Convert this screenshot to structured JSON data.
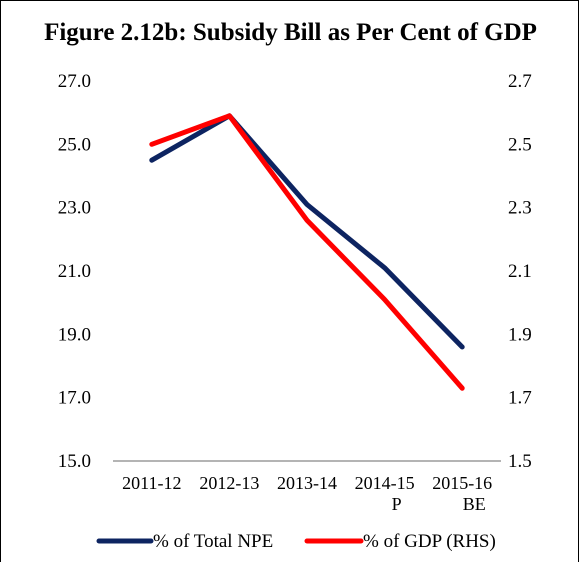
{
  "chart_data": {
    "type": "line",
    "title": "Figure 2.12b: Subsidy Bill as Per Cent of GDP",
    "categories": [
      [
        "2011-12"
      ],
      [
        "2012-13"
      ],
      [
        "2013-14"
      ],
      [
        "2014-15",
        "P"
      ],
      [
        "2015-16",
        "BE"
      ]
    ],
    "left_axis": {
      "ticks": [
        "27.0",
        "25.0",
        "23.0",
        "21.0",
        "19.0",
        "17.0",
        "15.0"
      ],
      "ylim": [
        15,
        27
      ]
    },
    "right_axis": {
      "ticks": [
        "2.7",
        "2.5",
        "2.3",
        "2.1",
        "1.9",
        "1.7",
        "1.5"
      ],
      "ylim": [
        1.5,
        2.7
      ]
    },
    "series": [
      {
        "name": "% of Total NPE",
        "axis": "left",
        "color": "#0d2461",
        "values": [
          24.5,
          25.9,
          23.1,
          21.1,
          18.6
        ]
      },
      {
        "name": "% of GDP (RHS)",
        "axis": "right",
        "color": "#ff0000",
        "values": [
          2.5,
          2.59,
          2.26,
          2.01,
          1.73
        ]
      }
    ],
    "grid": false,
    "legend_position": "bottom"
  }
}
